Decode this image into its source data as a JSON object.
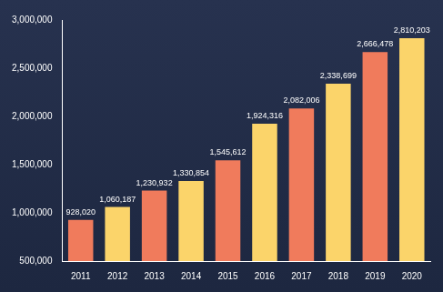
{
  "chart_data": {
    "type": "bar",
    "categories": [
      "2011",
      "2012",
      "2013",
      "2014",
      "2015",
      "2016",
      "2017",
      "2018",
      "2019",
      "2020"
    ],
    "values": [
      928020,
      1060187,
      1230932,
      1330854,
      1545612,
      1924316,
      2082006,
      2338699,
      2666478,
      2810203
    ],
    "value_labels": [
      "928,020",
      "1,060,187",
      "1,230,932",
      "1,330,854",
      "1,545,612",
      "1,924,316",
      "2,082,006",
      "2,338,699",
      "2,666,478",
      "2,810,203"
    ],
    "colors": [
      "#f07b5c",
      "#fbd46a",
      "#f07b5c",
      "#fbd46a",
      "#f07b5c",
      "#fbd46a",
      "#f07b5c",
      "#fbd46a",
      "#f07b5c",
      "#fbd46a"
    ],
    "ylim": [
      500000,
      3000000
    ],
    "yticks": [
      {
        "value": 500000,
        "label": "500,000"
      },
      {
        "value": 1000000,
        "label": "1,000,000"
      },
      {
        "value": 1500000,
        "label": "1,500,000"
      },
      {
        "value": 2000000,
        "label": "2,000,000"
      },
      {
        "value": 2500000,
        "label": "2,500,000"
      },
      {
        "value": 3000000,
        "label": "3,000,000"
      }
    ],
    "grid": false,
    "data_labels": true
  }
}
